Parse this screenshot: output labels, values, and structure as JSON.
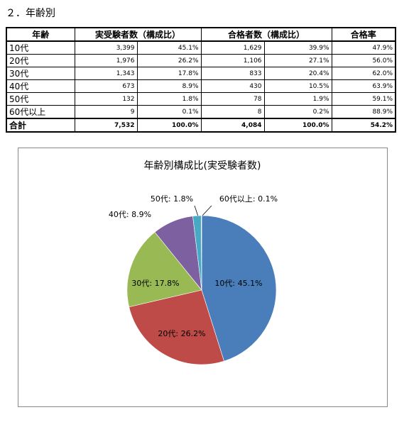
{
  "header": {
    "title": "２．年齢別"
  },
  "table": {
    "header": [
      "年齢",
      "実受験者数（構成比）",
      "合格者数（構成比）",
      "合格率"
    ],
    "rows": [
      [
        "10代",
        "3,399",
        "45.1%",
        "1,629",
        "39.9%",
        "47.9%"
      ],
      [
        "20代",
        "1,976",
        "26.2%",
        "1,106",
        "27.1%",
        "56.0%"
      ],
      [
        "30代",
        "1,343",
        "17.8%",
        "833",
        "20.4%",
        "62.0%"
      ],
      [
        "40代",
        "673",
        "8.9%",
        "430",
        "10.5%",
        "63.9%"
      ],
      [
        "50代",
        "132",
        "1.8%",
        "78",
        "1.9%",
        "59.1%"
      ],
      [
        "60代以上",
        "9",
        "0.1%",
        "8",
        "0.2%",
        "88.9%"
      ]
    ],
    "total": [
      "合計",
      "7,532",
      "100.0%",
      "4,084",
      "100.0%",
      "54.2%"
    ]
  },
  "chart_data": {
    "type": "pie",
    "title": "年齢別構成比(実受験者数)",
    "values": [
      45.1,
      26.2,
      17.8,
      8.9,
      1.8,
      0.1
    ],
    "value_labels": [
      "10代: 45.1%",
      "20代: 26.2%",
      "30代: 17.8%",
      "40代: 8.9%",
      "50代: 1.8%",
      "60代以上: 0.1%"
    ],
    "colors": [
      "#4a7ebb",
      "#be4b48",
      "#98b954",
      "#7d60a0",
      "#46aac5",
      "#f79646"
    ]
  }
}
